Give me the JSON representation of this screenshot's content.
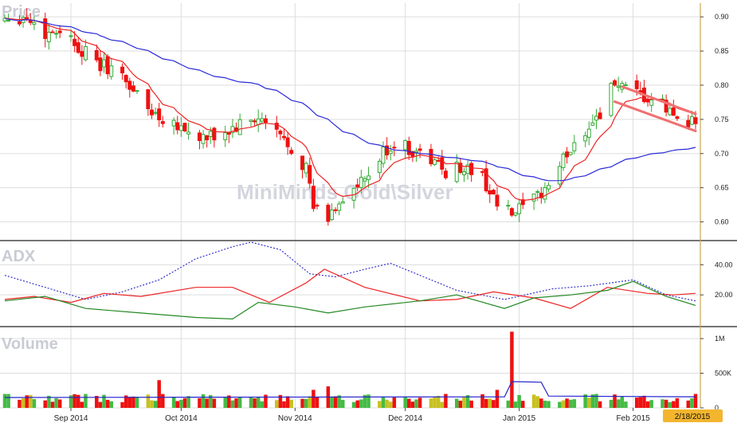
{
  "chart_data": [
    {
      "type": "candlestick",
      "panel": "price",
      "title": "Price",
      "watermark": "MiniMinds Gold\\Silver",
      "yticks": [
        0.9,
        0.85,
        0.8,
        0.75,
        0.7,
        0.65,
        0.6
      ],
      "ytick_labels": [
        "0.90",
        "0.85",
        "0.80",
        "0.75",
        "0.70",
        "0.65",
        "0.60"
      ],
      "ylim": [
        0.575,
        0.92
      ],
      "xlim": [
        "2014-08-14",
        "2015-02-18"
      ],
      "x_tick_dates": [
        "2014-09-01",
        "2014-10-01",
        "2014-11-01",
        "2014-12-01",
        "2015-01-01",
        "2015-02-01"
      ],
      "x_tick_labels": [
        "Sep 2014",
        "Oct 2014",
        "Nov 2014",
        "Dec 2014",
        "Jan 2015",
        "Feb 2015"
      ],
      "current_date_label": "2/18/2015",
      "close_anchors": [
        [
          "2014-08-14",
          0.9
        ],
        [
          "2014-08-20",
          0.9
        ],
        [
          "2014-08-25",
          0.875
        ],
        [
          "2014-08-29",
          0.883
        ],
        [
          "2014-09-03",
          0.857
        ],
        [
          "2014-09-08",
          0.83
        ],
        [
          "2014-09-12",
          0.825
        ],
        [
          "2014-09-17",
          0.8
        ],
        [
          "2014-09-22",
          0.765
        ],
        [
          "2014-09-25",
          0.755
        ],
        [
          "2014-09-30",
          0.745
        ],
        [
          "2014-10-03",
          0.73
        ],
        [
          "2014-10-08",
          0.72
        ],
        [
          "2014-10-13",
          0.73
        ],
        [
          "2014-10-17",
          0.74
        ],
        [
          "2014-10-22",
          0.75
        ],
        [
          "2014-10-27",
          0.73
        ],
        [
          "2014-10-30",
          0.715
        ],
        [
          "2014-11-04",
          0.68
        ],
        [
          "2014-11-06",
          0.62
        ],
        [
          "2014-11-10",
          0.605
        ],
        [
          "2014-11-13",
          0.63
        ],
        [
          "2014-11-18",
          0.65
        ],
        [
          "2014-11-21",
          0.665
        ],
        [
          "2014-11-25",
          0.7
        ],
        [
          "2014-11-28",
          0.715
        ],
        [
          "2014-12-03",
          0.705
        ],
        [
          "2014-12-08",
          0.69
        ],
        [
          "2014-12-12",
          0.675
        ],
        [
          "2014-12-17",
          0.68
        ],
        [
          "2014-12-22",
          0.665
        ],
        [
          "2014-12-26",
          0.625
        ],
        [
          "2014-12-30",
          0.61
        ],
        [
          "2015-01-05",
          0.63
        ],
        [
          "2015-01-09",
          0.655
        ],
        [
          "2015-01-14",
          0.7
        ],
        [
          "2015-01-19",
          0.735
        ],
        [
          "2015-01-23",
          0.76
        ],
        [
          "2015-01-27",
          0.805
        ],
        [
          "2015-01-30",
          0.79
        ],
        [
          "2015-02-04",
          0.78
        ],
        [
          "2015-02-09",
          0.77
        ],
        [
          "2015-02-12",
          0.755
        ],
        [
          "2015-02-18",
          0.747
        ]
      ],
      "series": [
        {
          "name": "",
          "kind": "moving-average-short",
          "color": "#ee2222"
        },
        {
          "name": "",
          "kind": "moving-average-long",
          "color": "#2a2ad8"
        }
      ],
      "trendlines": [
        {
          "color": "#f07070",
          "points": [
            [
              "2015-01-27",
              0.776
            ],
            [
              "2015-02-18",
              0.733
            ]
          ]
        },
        {
          "color": "#f07070",
          "points": [
            [
              "2015-01-29",
              0.798
            ],
            [
              "2015-02-18",
              0.758
            ]
          ]
        }
      ],
      "colors": {
        "up": "#33aa33",
        "down": "#ee1111"
      }
    },
    {
      "type": "line",
      "panel": "adx",
      "title": "ADX",
      "yticks": [
        20,
        40
      ],
      "ytick_labels": [
        "20.00",
        "40.00"
      ],
      "ylim": [
        0,
        55
      ],
      "series": [
        {
          "name": "",
          "color": "#3333cc",
          "dash": true,
          "points": [
            [
              "2014-08-14",
              33
            ],
            [
              "2014-08-25",
              25
            ],
            [
              "2014-09-05",
              17
            ],
            [
              "2014-09-15",
              22
            ],
            [
              "2014-09-25",
              30
            ],
            [
              "2014-10-05",
              44
            ],
            [
              "2014-10-15",
              52
            ],
            [
              "2014-10-20",
              55
            ],
            [
              "2014-10-28",
              50
            ],
            [
              "2014-11-05",
              34
            ],
            [
              "2014-11-12",
              32
            ],
            [
              "2014-11-20",
              37
            ],
            [
              "2014-11-27",
              41
            ],
            [
              "2014-12-05",
              33
            ],
            [
              "2014-12-15",
              23
            ],
            [
              "2014-12-28",
              17
            ],
            [
              "2015-01-10",
              24
            ],
            [
              "2015-01-20",
              26
            ],
            [
              "2015-02-01",
              30
            ],
            [
              "2015-02-10",
              20
            ],
            [
              "2015-02-18",
              16
            ]
          ]
        },
        {
          "name": "",
          "color": "#ee2222",
          "points": [
            [
              "2014-08-14",
              17
            ],
            [
              "2014-08-22",
              19
            ],
            [
              "2014-09-01",
              15
            ],
            [
              "2014-09-10",
              21
            ],
            [
              "2014-09-20",
              19
            ],
            [
              "2014-10-05",
              25
            ],
            [
              "2014-10-15",
              25
            ],
            [
              "2014-10-25",
              15
            ],
            [
              "2014-11-04",
              28
            ],
            [
              "2014-11-09",
              37
            ],
            [
              "2014-11-20",
              25
            ],
            [
              "2014-12-05",
              16
            ],
            [
              "2014-12-15",
              17
            ],
            [
              "2014-12-25",
              22
            ],
            [
              "2015-01-05",
              18
            ],
            [
              "2015-01-15",
              11
            ],
            [
              "2015-01-25",
              25
            ],
            [
              "2015-02-05",
              21
            ],
            [
              "2015-02-12",
              20
            ],
            [
              "2015-02-18",
              21
            ]
          ]
        },
        {
          "name": "",
          "color": "#228822",
          "points": [
            [
              "2014-08-14",
              16
            ],
            [
              "2014-08-25",
              19
            ],
            [
              "2014-09-05",
              11
            ],
            [
              "2014-09-20",
              8
            ],
            [
              "2014-10-05",
              5
            ],
            [
              "2014-10-15",
              4
            ],
            [
              "2014-10-22",
              15
            ],
            [
              "2014-11-01",
              12
            ],
            [
              "2014-11-10",
              8
            ],
            [
              "2014-11-20",
              12
            ],
            [
              "2014-12-05",
              16
            ],
            [
              "2014-12-15",
              20
            ],
            [
              "2014-12-28",
              11
            ],
            [
              "2015-01-05",
              18
            ],
            [
              "2015-01-15",
              20
            ],
            [
              "2015-01-25",
              23
            ],
            [
              "2015-02-01",
              29
            ],
            [
              "2015-02-10",
              19
            ],
            [
              "2015-02-18",
              13
            ]
          ]
        }
      ]
    },
    {
      "type": "bar",
      "panel": "volume",
      "title": "Volume",
      "yticks": [
        0,
        500000,
        1000000
      ],
      "ytick_labels": [
        "0",
        "500K",
        "1M"
      ],
      "ylim": [
        0,
        1150000
      ],
      "spikes": [
        [
          "2014-09-25",
          400000
        ],
        [
          "2014-11-06",
          260000
        ],
        [
          "2014-11-10",
          310000
        ],
        [
          "2014-12-26",
          260000
        ],
        [
          "2014-12-30",
          1100000
        ]
      ],
      "baseline_volume": 150000,
      "average_line": {
        "name": "",
        "color": "#2222cc",
        "points": [
          [
            "2014-08-14",
            150000
          ],
          [
            "2014-12-28",
            160000
          ],
          [
            "2014-12-30",
            380000
          ],
          [
            "2015-01-07",
            370000
          ],
          [
            "2015-01-09",
            170000
          ],
          [
            "2015-02-18",
            160000
          ]
        ]
      },
      "colors": {
        "up": "#44bb44",
        "down": "#ee1111",
        "neutral": "#c8c020"
      }
    }
  ]
}
